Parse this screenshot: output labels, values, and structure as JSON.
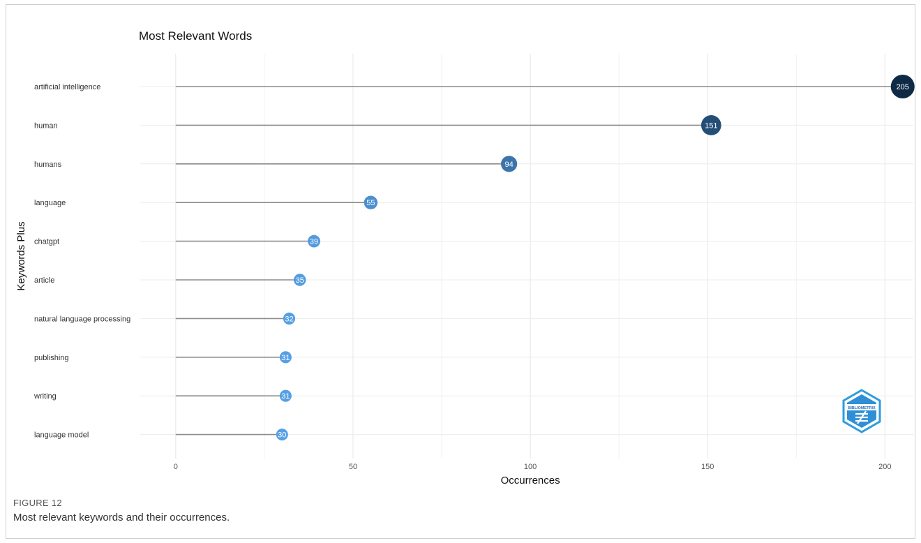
{
  "chart_data": {
    "type": "lollipop",
    "title": "Most Relevant Words",
    "xlabel": "Occurrences",
    "ylabel": "Keywords Plus",
    "xlim": [
      -10,
      208
    ],
    "xticks": [
      0,
      50,
      100,
      150,
      200
    ],
    "grid": true,
    "categories": [
      "artificial intelligence",
      "human",
      "humans",
      "language",
      "chatgpt",
      "article",
      "natural language processing",
      "publishing",
      "writing",
      "language model"
    ],
    "values": [
      205,
      151,
      94,
      55,
      39,
      35,
      32,
      31,
      31,
      30
    ],
    "color_scale": {
      "low": "#56a0e6",
      "high": "#0f2a45"
    }
  },
  "figure": {
    "label": "FIGURE 12",
    "caption": "Most relevant keywords and their occurrences."
  },
  "logo": {
    "text": "BIBLIOMETRIX",
    "icon": "bibliometrix-hexagon-logo"
  }
}
